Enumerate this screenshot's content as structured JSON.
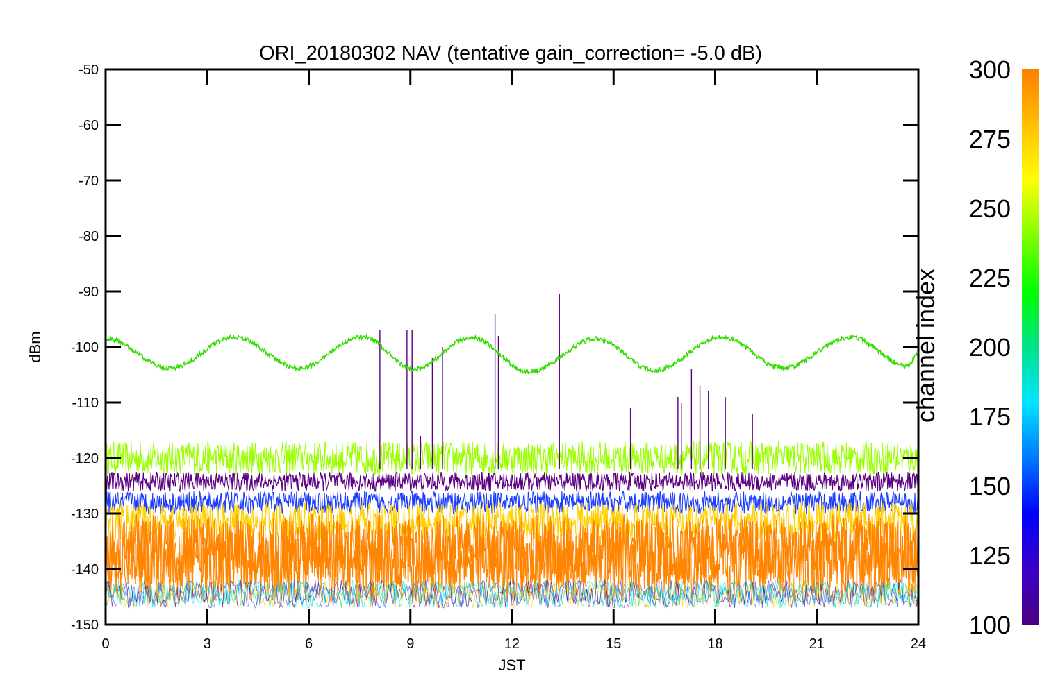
{
  "chart_data": {
    "type": "line",
    "title": "ORI_20180302 NAV (tentative gain_correction= -5.0 dB)",
    "xlabel": "JST",
    "ylabel": "dBm",
    "xlim": [
      0,
      24
    ],
    "ylim": [
      -150,
      -50
    ],
    "x_ticks": [
      "0",
      "3",
      "6",
      "9",
      "12",
      "15",
      "18",
      "21",
      "24"
    ],
    "y_ticks": [
      "-50",
      "-60",
      "-70",
      "-80",
      "-90",
      "-100",
      "-110",
      "-120",
      "-130",
      "-140",
      "-150"
    ],
    "grid": false,
    "colorbar": {
      "title": "channel index",
      "range": [
        100,
        300
      ],
      "ticks": [
        "100",
        "125",
        "150",
        "175",
        "200",
        "225",
        "250",
        "275",
        "300"
      ],
      "colors": [
        "#4b0082",
        "#3a00c8",
        "#0000ff",
        "#0078ff",
        "#00e5ff",
        "#00e08a",
        "#00ff00",
        "#80ff00",
        "#ffff00",
        "#ffc000",
        "#ff8000"
      ]
    },
    "series": [
      {
        "color": "#33dd00",
        "description_points": {
          "x": [
            0,
            1.9,
            3.8,
            5.7,
            7.6,
            9.1,
            10.8,
            12.5,
            14.5,
            16.2,
            18.2,
            20,
            22,
            23.7,
            24
          ],
          "y": [
            -98.5,
            -103.8,
            -98.2,
            -103.8,
            -98.2,
            -104,
            -98.3,
            -104.5,
            -98.5,
            -104.2,
            -98.2,
            -103.8,
            -98.2,
            -103.5,
            -101
          ]
        }
      },
      {
        "color": "#9aff00",
        "band_y": [
          -123,
          -117
        ]
      },
      {
        "color": "#5b0080",
        "band_y": [
          -126,
          -122.5
        ]
      },
      {
        "color": "#1a3cff",
        "band_y": [
          -130,
          -126
        ]
      },
      {
        "color": "#ffd000",
        "band_y": [
          -135,
          -128
        ]
      },
      {
        "color": "#ff8400",
        "band_y": [
          -146,
          -130
        ]
      }
    ],
    "spikes": [
      {
        "x": 8.1,
        "y": -97,
        "color": "#5b0080"
      },
      {
        "x": 8.9,
        "y": -97,
        "color": "#5b0080"
      },
      {
        "x": 9.05,
        "y": -97,
        "color": "#5b0080"
      },
      {
        "x": 9.3,
        "y": -116,
        "color": "#5b0080"
      },
      {
        "x": 9.65,
        "y": -102,
        "color": "#5b0080"
      },
      {
        "x": 9.95,
        "y": -100,
        "color": "#5b0080"
      },
      {
        "x": 11.5,
        "y": -94,
        "color": "#5b0080"
      },
      {
        "x": 11.6,
        "y": -98,
        "color": "#5b0080"
      },
      {
        "x": 13.4,
        "y": -90.5,
        "color": "#5b0080"
      },
      {
        "x": 15.5,
        "y": -111,
        "color": "#5b0080"
      },
      {
        "x": 16.9,
        "y": -109,
        "color": "#5b0080"
      },
      {
        "x": 17.0,
        "y": -110,
        "color": "#5b0080"
      },
      {
        "x": 17.3,
        "y": -104,
        "color": "#5b0080"
      },
      {
        "x": 17.55,
        "y": -107,
        "color": "#5b0080"
      },
      {
        "x": 17.8,
        "y": -108,
        "color": "#5b0080"
      },
      {
        "x": 18.3,
        "y": -109,
        "color": "#5b0080"
      },
      {
        "x": 19.1,
        "y": -112,
        "color": "#5b0080"
      }
    ]
  }
}
